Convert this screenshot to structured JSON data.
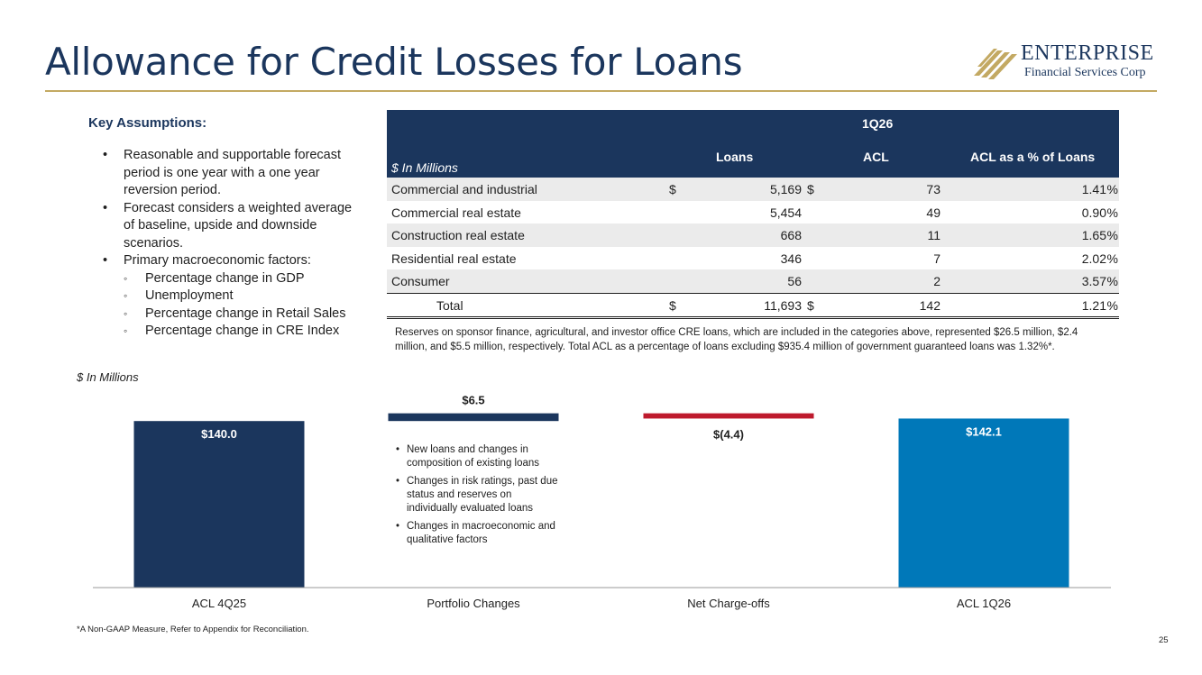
{
  "slide": {
    "title": "Allowance for Credit Losses for Loans",
    "page_number": "25",
    "footnote": "*A Non-GAAP Measure, Refer to Appendix for Reconciliation."
  },
  "logo": {
    "name": "ENTERPRISE",
    "subtitle": "Financial Services Corp"
  },
  "key_assumptions": {
    "title": "Key Assumptions:",
    "items": [
      "Reasonable and supportable forecast period is one year with a one year reversion period.",
      "Forecast considers a weighted average of baseline, upside and downside scenarios.",
      "Primary macroeconomic factors:"
    ],
    "subitems": [
      "Percentage change in GDP",
      "Unemployment",
      "Percentage change in Retail Sales",
      "Percentage change in CRE Index"
    ]
  },
  "acl_table": {
    "period": "1Q26",
    "units": "$ In Millions",
    "columns": [
      "Loans",
      "ACL",
      "ACL as a % of Loans"
    ],
    "rows": [
      {
        "label": "Commercial and industrial",
        "dollar1": "$",
        "loans": "5,169",
        "dollar2": "$",
        "acl": "73",
        "pct": "1.41",
        "pct_sign": "%"
      },
      {
        "label": "Commercial real estate",
        "dollar1": "",
        "loans": "5,454",
        "dollar2": "",
        "acl": "49",
        "pct": "0.90",
        "pct_sign": "%"
      },
      {
        "label": "Construction real estate",
        "dollar1": "",
        "loans": "668",
        "dollar2": "",
        "acl": "11",
        "pct": "1.65",
        "pct_sign": "%"
      },
      {
        "label": "Residential real estate",
        "dollar1": "",
        "loans": "346",
        "dollar2": "",
        "acl": "7",
        "pct": "2.02",
        "pct_sign": "%"
      },
      {
        "label": "Consumer",
        "dollar1": "",
        "loans": "56",
        "dollar2": "",
        "acl": "2",
        "pct": "3.57",
        "pct_sign": "%"
      }
    ],
    "total": {
      "label": "Total",
      "dollar1": "$",
      "loans": "11,693",
      "dollar2": "$",
      "acl": "142",
      "pct": "1.21",
      "pct_sign": "%"
    },
    "note": "Reserves on sponsor finance, agricultural, and investor office CRE loans, which are included in the categories above, represented $26.5 million, $2.4 million, and $5.5 million, respectively. Total ACL as a percentage of loans excluding $935.4 million of government guaranteed loans was 1.32%*."
  },
  "waterfall": {
    "units_label": "$ In Millions",
    "portfolio_change_notes": [
      "New loans and changes in composition of existing loans",
      "Changes in risk ratings, past due status and reserves on individually evaluated loans",
      "Changes in macroeconomic and qualitative factors"
    ]
  },
  "chart_data": {
    "type": "bar",
    "subtype": "waterfall",
    "categories": [
      "ACL 4Q25",
      "Portfolio Changes",
      "Net Charge-offs",
      "ACL 1Q26"
    ],
    "values": [
      140.0,
      6.5,
      -4.4,
      142.1
    ],
    "kinds": [
      "total",
      "increase",
      "decrease",
      "total"
    ],
    "data_labels": [
      "$140.0",
      "$6.5",
      "$(4.4)",
      "$142.1"
    ],
    "ylim": [
      0,
      146.5
    ],
    "grid": false,
    "colors": {
      "total_start": "#1b365d",
      "increase": "#1b365d",
      "decrease": "#be1a2d",
      "total_end": "#0078b9"
    }
  },
  "colors": {
    "navy": "#1b365d",
    "gold": "#c3a962",
    "table_alt_row": "#ebebeb"
  }
}
